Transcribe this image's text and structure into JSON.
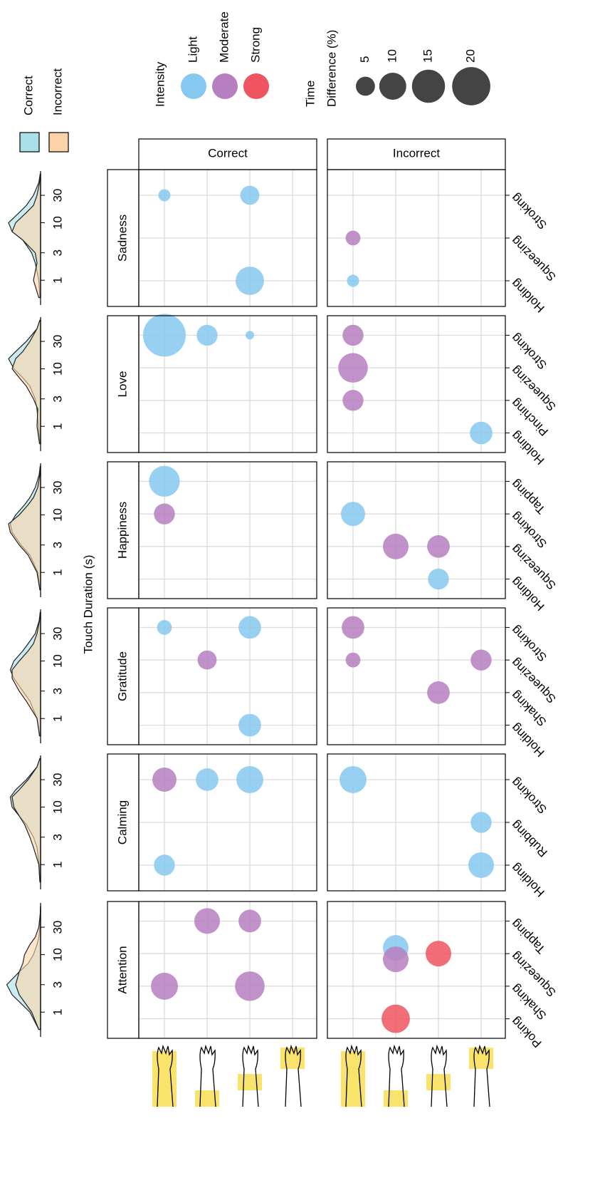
{
  "chart_data": {
    "type": "bubble",
    "facets": [
      "Correct",
      "Incorrect"
    ],
    "y_axis_label": "Touch Duration (s)",
    "density_series": [
      {
        "name": "Correct",
        "color": "#a9dfe6"
      },
      {
        "name": "Incorrect",
        "color": "#fbd3a8"
      }
    ],
    "density_x": [
      0.5,
      1,
      2,
      3,
      5,
      7,
      10,
      15,
      20,
      30,
      50,
      70
    ],
    "density_xlim": [
      0.35,
      84
    ],
    "density_xticks": [
      1,
      3,
      10,
      30
    ],
    "intensity_title": "Intensity",
    "intensities": [
      {
        "name": "Light",
        "color": "#86c8ef"
      },
      {
        "name": "Moderate",
        "color": "#b67fc0"
      },
      {
        "name": "Strong",
        "color": "#ee5560"
      }
    ],
    "size_title": [
      "Time",
      "Difference (%)"
    ],
    "size_legend": [
      5,
      10,
      15,
      20
    ],
    "locations": [
      null,
      null,
      null,
      null
    ],
    "panels": [
      {
        "emotion": "Sadness",
        "gestures": [
          "Holding",
          "Squeezing",
          "Stroking"
        ],
        "density": {
          "correct": [
            0.02,
            0.05,
            0.15,
            0.25,
            0.5,
            0.8,
            0.9,
            0.6,
            0.4,
            0.2,
            0.05,
            0.01
          ],
          "incorrect": [
            0.05,
            0.2,
            0.1,
            0.15,
            0.5,
            0.8,
            0.7,
            0.4,
            0.2,
            0.1,
            0.03,
            0.01
          ]
        },
        "points": [
          {
            "facet": 0,
            "gesture": 2,
            "location": 0,
            "intensity": 0,
            "size": 2
          },
          {
            "facet": 0,
            "gesture": 2,
            "location": 2,
            "intensity": 0,
            "size": 5
          },
          {
            "facet": 0,
            "gesture": 0,
            "location": 2,
            "intensity": 0,
            "size": 11
          },
          {
            "facet": 1,
            "gesture": 1,
            "location": 0,
            "intensity": 1,
            "size": 3
          },
          {
            "facet": 1,
            "gesture": 0,
            "location": 0,
            "intensity": 0,
            "size": 2
          }
        ]
      },
      {
        "emotion": "Love",
        "gestures": [
          "Holding",
          "Pinching",
          "Squeezing",
          "Stroking"
        ],
        "density": {
          "correct": [
            0.02,
            0.06,
            0.1,
            0.15,
            0.3,
            0.5,
            0.75,
            0.9,
            0.7,
            0.4,
            0.1,
            0.02
          ],
          "incorrect": [
            0.03,
            0.1,
            0.08,
            0.2,
            0.4,
            0.6,
            0.8,
            0.7,
            0.5,
            0.3,
            0.1,
            0.02
          ]
        },
        "points": [
          {
            "facet": 0,
            "gesture": 3,
            "location": 0,
            "intensity": 0,
            "size": 25
          },
          {
            "facet": 0,
            "gesture": 3,
            "location": 1,
            "intensity": 0,
            "size": 6
          },
          {
            "facet": 0,
            "gesture": 3,
            "location": 2,
            "intensity": 0,
            "size": 1
          },
          {
            "facet": 1,
            "gesture": 3,
            "location": 0,
            "intensity": 1,
            "size": 6
          },
          {
            "facet": 1,
            "gesture": 2,
            "location": 0,
            "intensity": 1,
            "size": 12
          },
          {
            "facet": 1,
            "gesture": 1,
            "location": 0,
            "intensity": 1,
            "size": 6
          },
          {
            "facet": 1,
            "gesture": 0,
            "location": 3,
            "intensity": 0,
            "size": 7
          }
        ]
      },
      {
        "emotion": "Happiness",
        "gestures": [
          "Holding",
          "Squeezing",
          "Stroking",
          "Tapping"
        ],
        "density": {
          "correct": [
            0.02,
            0.08,
            0.3,
            0.55,
            0.8,
            0.85,
            0.7,
            0.45,
            0.3,
            0.15,
            0.04,
            0.01
          ],
          "incorrect": [
            0.02,
            0.1,
            0.35,
            0.6,
            0.85,
            0.9,
            0.6,
            0.35,
            0.2,
            0.08,
            0.02,
            0.01
          ]
        },
        "points": [
          {
            "facet": 0,
            "gesture": 3,
            "location": 0,
            "intensity": 0,
            "size": 13
          },
          {
            "facet": 0,
            "gesture": 2,
            "location": 0,
            "intensity": 1,
            "size": 6
          },
          {
            "facet": 1,
            "gesture": 2,
            "location": 0,
            "intensity": 0,
            "size": 8
          },
          {
            "facet": 1,
            "gesture": 1,
            "location": 1,
            "intensity": 1,
            "size": 9
          },
          {
            "facet": 1,
            "gesture": 1,
            "location": 2,
            "intensity": 1,
            "size": 7
          },
          {
            "facet": 1,
            "gesture": 0,
            "location": 2,
            "intensity": 0,
            "size": 6
          }
        ]
      },
      {
        "emotion": "Gratitude",
        "gestures": [
          "Holding",
          "Shaking",
          "Squeezing",
          "Stroking"
        ],
        "density": {
          "correct": [
            0.02,
            0.1,
            0.3,
            0.5,
            0.75,
            0.85,
            0.75,
            0.5,
            0.35,
            0.15,
            0.04,
            0.01
          ],
          "incorrect": [
            0.03,
            0.1,
            0.4,
            0.6,
            0.8,
            0.8,
            0.6,
            0.35,
            0.2,
            0.1,
            0.03,
            0.01
          ]
        },
        "points": [
          {
            "facet": 0,
            "gesture": 3,
            "location": 0,
            "intensity": 0,
            "size": 3
          },
          {
            "facet": 0,
            "gesture": 3,
            "location": 2,
            "intensity": 0,
            "size": 7
          },
          {
            "facet": 0,
            "gesture": 2,
            "location": 1,
            "intensity": 1,
            "size": 5
          },
          {
            "facet": 0,
            "gesture": 0,
            "location": 2,
            "intensity": 0,
            "size": 7
          },
          {
            "facet": 1,
            "gesture": 3,
            "location": 0,
            "intensity": 1,
            "size": 7
          },
          {
            "facet": 1,
            "gesture": 2,
            "location": 0,
            "intensity": 1,
            "size": 3
          },
          {
            "facet": 1,
            "gesture": 2,
            "location": 3,
            "intensity": 1,
            "size": 6
          },
          {
            "facet": 1,
            "gesture": 1,
            "location": 2,
            "intensity": 1,
            "size": 7
          }
        ]
      },
      {
        "emotion": "Calming",
        "gestures": [
          "Holding",
          "Rubbing",
          "Stroking"
        ],
        "density": {
          "correct": [
            0.01,
            0.04,
            0.1,
            0.2,
            0.4,
            0.6,
            0.8,
            0.85,
            0.7,
            0.4,
            0.1,
            0.02
          ],
          "incorrect": [
            0.02,
            0.05,
            0.2,
            0.3,
            0.45,
            0.6,
            0.75,
            0.8,
            0.6,
            0.35,
            0.1,
            0.02
          ]
        },
        "points": [
          {
            "facet": 0,
            "gesture": 2,
            "location": 0,
            "intensity": 1,
            "size": 8
          },
          {
            "facet": 0,
            "gesture": 2,
            "location": 1,
            "intensity": 0,
            "size": 7
          },
          {
            "facet": 0,
            "gesture": 2,
            "location": 2,
            "intensity": 0,
            "size": 10
          },
          {
            "facet": 0,
            "gesture": 0,
            "location": 0,
            "intensity": 0,
            "size": 6
          },
          {
            "facet": 1,
            "gesture": 2,
            "location": 0,
            "intensity": 0,
            "size": 10
          },
          {
            "facet": 1,
            "gesture": 1,
            "location": 3,
            "intensity": 0,
            "size": 6
          },
          {
            "facet": 1,
            "gesture": 0,
            "location": 3,
            "intensity": 0,
            "size": 9
          }
        ]
      },
      {
        "emotion": "Attention",
        "gestures": [
          "Poking",
          "Shaking",
          "Squeezing",
          "Tapping"
        ],
        "density": {
          "correct": [
            0.05,
            0.3,
            0.8,
            0.95,
            0.6,
            0.35,
            0.2,
            0.1,
            0.05,
            0.02,
            0.01,
            0.0
          ],
          "incorrect": [
            0.05,
            0.25,
            0.6,
            0.7,
            0.6,
            0.5,
            0.45,
            0.3,
            0.15,
            0.05,
            0.01,
            0.0
          ]
        },
        "points": [
          {
            "facet": 0,
            "gesture": 3,
            "location": 1,
            "intensity": 1,
            "size": 9
          },
          {
            "facet": 0,
            "gesture": 3,
            "location": 2,
            "intensity": 1,
            "size": 7
          },
          {
            "facet": 0,
            "gesture": 1,
            "location": 0,
            "intensity": 1,
            "size": 10
          },
          {
            "facet": 0,
            "gesture": 1,
            "location": 2,
            "intensity": 1,
            "size": 12
          },
          {
            "facet": 1,
            "gesture": 2,
            "location": 1,
            "intensity": 0,
            "size": 9
          },
          {
            "facet": 1,
            "gesture": 2,
            "location": 1,
            "intensity": 1,
            "size": 9
          },
          {
            "facet": 1,
            "gesture": 2,
            "location": 2,
            "intensity": 2,
            "size": 9
          },
          {
            "facet": 1,
            "gesture": 0,
            "location": 1,
            "intensity": 2,
            "size": 11
          }
        ]
      }
    ]
  }
}
